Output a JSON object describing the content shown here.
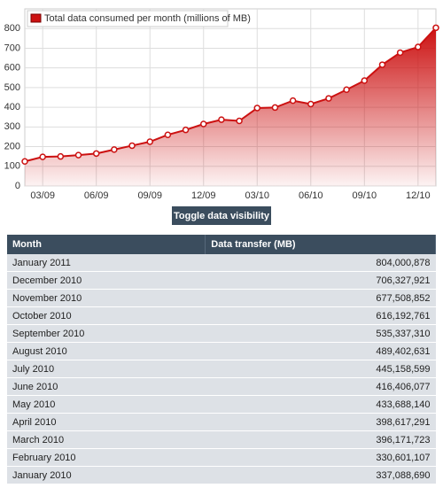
{
  "chart_data": {
    "type": "area",
    "series": [
      {
        "name": "Total data consumed per month (millions of MB)",
        "color": "#cc1111",
        "values": [
          125,
          148,
          150,
          157,
          165,
          185,
          205,
          225,
          260,
          285,
          315,
          337.09,
          330.6,
          396.17,
          398.62,
          433.69,
          416.41,
          445.16,
          489.4,
          535.34,
          616.19,
          677.51,
          706.33,
          804.0
        ]
      }
    ],
    "categories": [
      null,
      "03/09",
      null,
      null,
      "06/09",
      null,
      null,
      "09/09",
      null,
      null,
      "12/09",
      null,
      null,
      "03/10",
      null,
      null,
      "06/10",
      null,
      null,
      "09/10",
      null,
      null,
      "12/10",
      null
    ],
    "ylim": [
      0,
      900
    ],
    "yticks": [
      0,
      100,
      200,
      300,
      400,
      500,
      600,
      700,
      800
    ],
    "grid": true,
    "legend": "top-left"
  },
  "button": "Toggle data visibility",
  "table": {
    "header": [
      "Month",
      "Data transfer (MB)"
    ],
    "rows": [
      [
        "January 2011",
        "804,000,878"
      ],
      [
        "December 2010",
        "706,327,921"
      ],
      [
        "November 2010",
        "677,508,852"
      ],
      [
        "October 2010",
        "616,192,761"
      ],
      [
        "September 2010",
        "535,337,310"
      ],
      [
        "August 2010",
        "489,402,631"
      ],
      [
        "July 2010",
        "445,158,599"
      ],
      [
        "June 2010",
        "416,406,077"
      ],
      [
        "May 2010",
        "433,688,140"
      ],
      [
        "April 2010",
        "398,617,291"
      ],
      [
        "March 2010",
        "396,171,723"
      ],
      [
        "February 2010",
        "330,601,107"
      ],
      [
        "January 2010",
        "337,088,690"
      ]
    ]
  }
}
